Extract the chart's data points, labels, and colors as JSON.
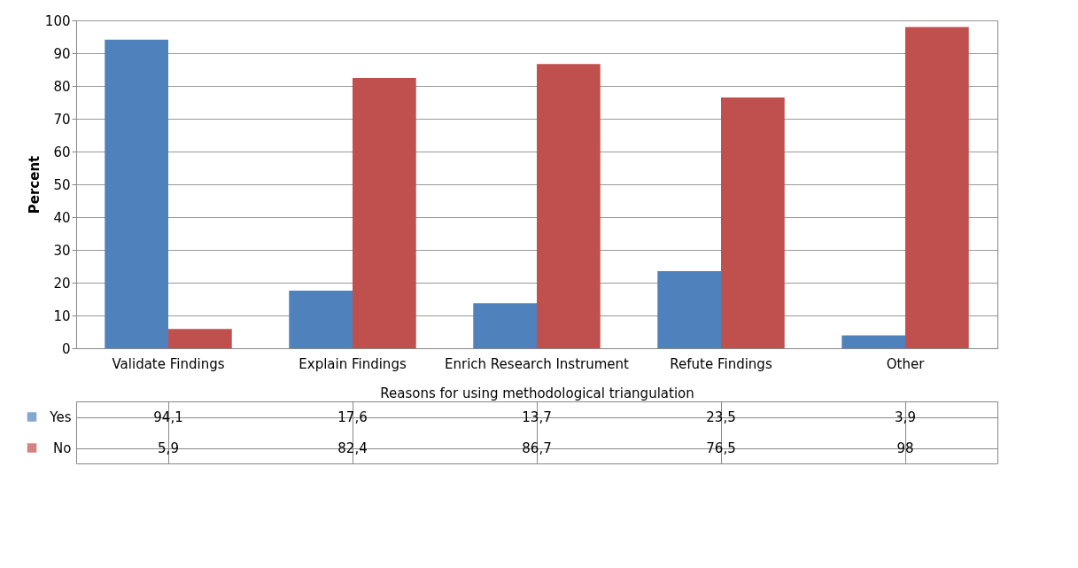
{
  "chart_data": {
    "type": "bar",
    "xlabel": "Reasons for using methodological triangulation",
    "ylabel": "Percent",
    "categories": [
      "Validate Findings",
      "Explain Findings",
      "Enrich Research Instrument",
      "Refute Findings",
      "Other"
    ],
    "series": [
      {
        "name": "Yes",
        "color": "#4f81bd",
        "values": [
          94.1,
          17.6,
          13.7,
          23.5,
          3.9
        ],
        "value_labels": [
          "94,1",
          "17,6",
          "13,7",
          "23,5",
          "3,9"
        ]
      },
      {
        "name": "No",
        "color": "#c0504d",
        "values": [
          5.9,
          82.4,
          86.7,
          76.5,
          98
        ],
        "value_labels": [
          "5,9",
          "82,4",
          "86,7",
          "76,5",
          "98"
        ]
      }
    ],
    "ylim": [
      0,
      100
    ],
    "yticks": [
      0,
      10,
      20,
      30,
      40,
      50,
      60,
      70,
      80,
      90,
      100
    ],
    "grid": "y",
    "legend": "bottom left"
  }
}
